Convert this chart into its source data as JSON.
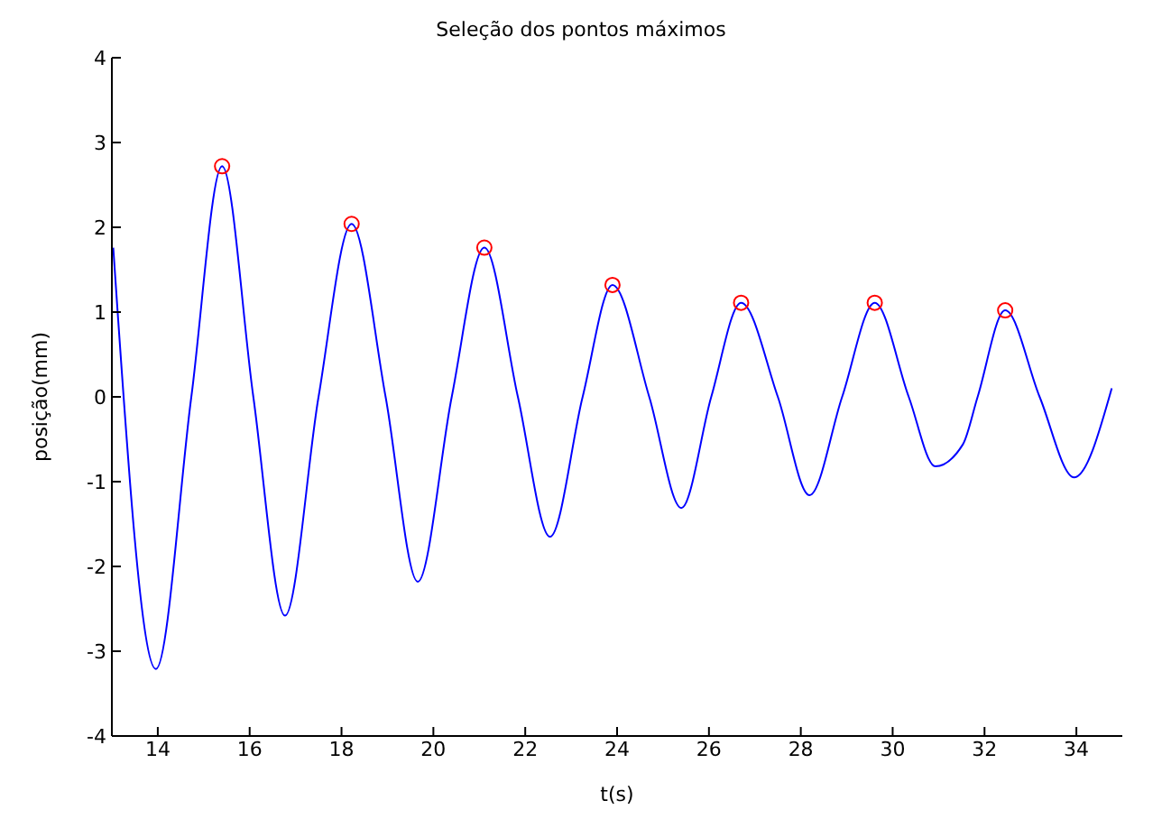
{
  "chart_data": {
    "type": "line",
    "title": "Seleção dos pontos máximos",
    "xlabel": "t(s)",
    "ylabel": "posição(mm)",
    "xlim": [
      13,
      35
    ],
    "xticks": [
      14,
      16,
      18,
      20,
      22,
      24,
      26,
      28,
      30,
      32,
      34
    ],
    "ylim": [
      -4,
      4
    ],
    "yticks": [
      -4,
      -3,
      -2,
      -1,
      0,
      1,
      2,
      3,
      4
    ],
    "grid": false,
    "legend": false,
    "series": [
      {
        "marker": "none",
        "color": "#0000ff",
        "x": [
          13.03,
          13.96,
          14.73,
          15.4,
          16.08,
          16.77,
          17.5,
          18.22,
          18.96,
          19.66,
          20.4,
          21.11,
          21.84,
          22.54,
          23.25,
          23.9,
          24.7,
          25.4,
          26.05,
          26.7,
          27.5,
          28.19,
          28.9,
          29.61,
          30.35,
          30.93,
          31.53,
          31.85,
          32.45,
          33.2,
          33.95,
          34.77
        ],
        "values": [
          1.76,
          -3.21,
          0,
          2.72,
          0,
          -2.58,
          0,
          2.04,
          0,
          -2.18,
          0,
          1.76,
          0,
          -1.65,
          0,
          1.32,
          0,
          -1.31,
          0,
          1.11,
          0,
          -1.16,
          0,
          1.11,
          0,
          -0.82,
          -0.56,
          0,
          1.02,
          0,
          -0.95,
          0.1
        ]
      },
      {
        "type": "scatter",
        "marker": "circle",
        "color": "#ff0000",
        "x": [
          15.4,
          18.22,
          21.11,
          23.9,
          26.7,
          29.61,
          32.45
        ],
        "values": [
          2.72,
          2.04,
          1.76,
          1.32,
          1.11,
          1.11,
          1.02
        ]
      }
    ]
  }
}
